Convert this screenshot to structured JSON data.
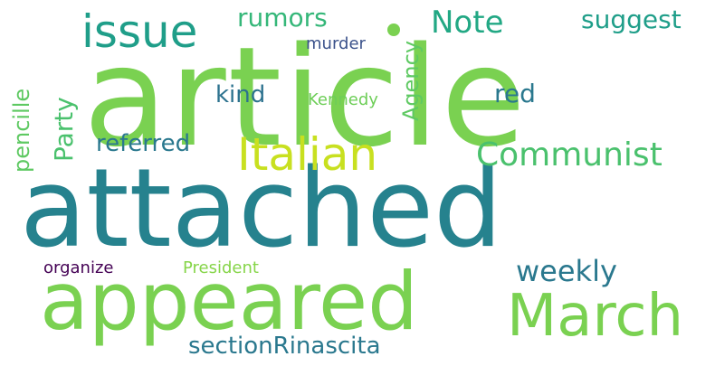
{
  "words": [
    {
      "text": "article",
      "color": "#7ad151",
      "rotated": false
    },
    {
      "text": "attached",
      "color": "#26828e",
      "rotated": false
    },
    {
      "text": "appeared",
      "color": "#7ad151",
      "rotated": false
    },
    {
      "text": "March",
      "color": "#7ad151",
      "rotated": false
    },
    {
      "text": "Italian",
      "color": "#c8e020",
      "rotated": false
    },
    {
      "text": "Communist",
      "color": "#4ac16d",
      "rotated": false
    },
    {
      "text": "issue",
      "color": "#1f9e89",
      "rotated": false
    },
    {
      "text": "weekly",
      "color": "#2a788e",
      "rotated": false
    },
    {
      "text": "sectionRinascita",
      "color": "#2a788e",
      "rotated": false
    },
    {
      "text": "rumors",
      "color": "#35b779",
      "rotated": false
    },
    {
      "text": "Note",
      "color": "#22a884",
      "rotated": false
    },
    {
      "text": "suggest",
      "color": "#1f9e89",
      "rotated": false
    },
    {
      "text": "kind",
      "color": "#2c728e",
      "rotated": false
    },
    {
      "text": "red",
      "color": "#2a788e",
      "rotated": false
    },
    {
      "text": "referred",
      "color": "#2a788e",
      "rotated": false
    },
    {
      "text": "Party",
      "color": "#4ac16d",
      "rotated": true
    },
    {
      "text": "Agency",
      "color": "#5ec962",
      "rotated": true
    },
    {
      "text": "pencille",
      "color": "#5ec962",
      "rotated": true
    },
    {
      "text": "murder",
      "color": "#3b528b",
      "rotated": false
    },
    {
      "text": "Kennedy",
      "color": "#6ece58",
      "rotated": false
    },
    {
      "text": "organize",
      "color": "#440154",
      "rotated": false
    },
    {
      "text": "President",
      "color": "#86d549",
      "rotated": false
    },
    {
      "text": "",
      "color": "#7ad151",
      "rotated": false
    }
  ]
}
